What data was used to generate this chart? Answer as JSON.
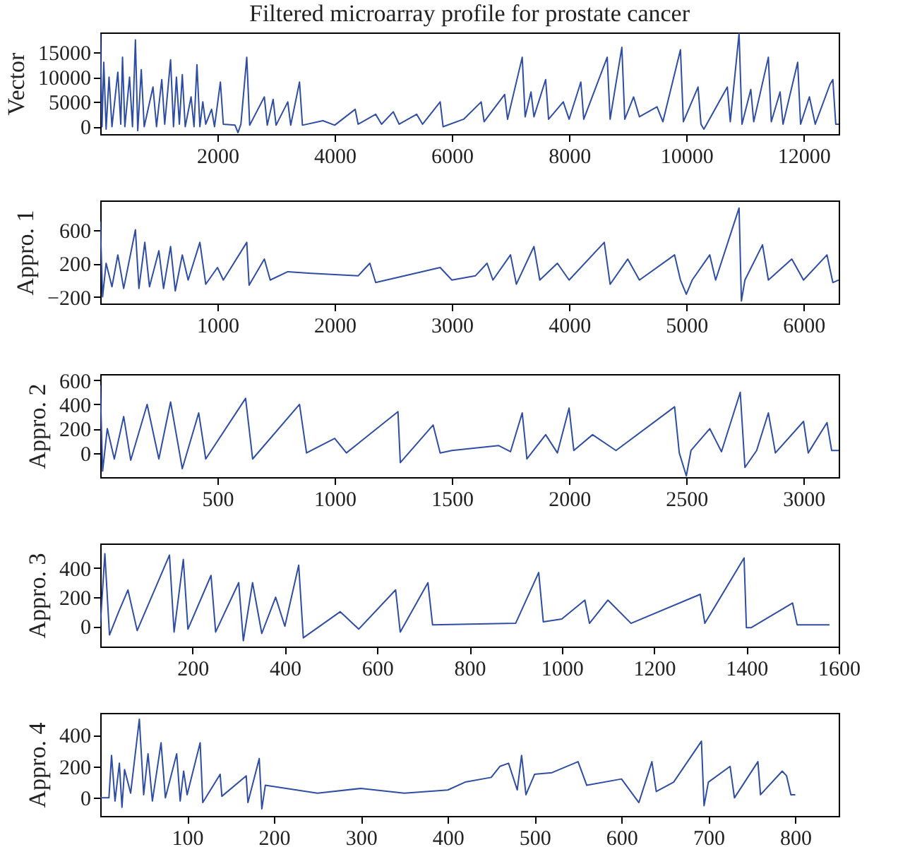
{
  "chart_data": [
    {
      "type": "line",
      "title": "Filtered microarray profile for prostate cancer",
      "ylabel": "Vector",
      "grid": false,
      "xlim": [
        0,
        12600
      ],
      "ylim": [
        -1500,
        19000
      ],
      "xticks": [
        2000,
        4000,
        6000,
        8000,
        10000,
        12000
      ],
      "yticks": [
        0,
        5000,
        10000,
        15000
      ],
      "x": [
        0,
        30,
        60,
        100,
        150,
        200,
        300,
        350,
        380,
        420,
        500,
        550,
        600,
        640,
        700,
        750,
        900,
        960,
        1050,
        1100,
        1200,
        1250,
        1300,
        1350,
        1400,
        1450,
        1550,
        1600,
        1650,
        1700,
        1750,
        1800,
        1900,
        1950,
        2050,
        2100,
        2300,
        2350,
        2400,
        2500,
        2550,
        2800,
        2850,
        2950,
        3000,
        3200,
        3250,
        3400,
        3450,
        3800,
        4000,
        4350,
        4400,
        4700,
        4800,
        5000,
        5100,
        5400,
        5500,
        5800,
        5850,
        6200,
        6500,
        6550,
        6900,
        6950,
        7200,
        7250,
        7350,
        7400,
        7600,
        7650,
        7900,
        8000,
        8200,
        8250,
        8650,
        8700,
        8900,
        8950,
        9100,
        9200,
        9500,
        9600,
        9900,
        9950,
        10200,
        10250,
        10300,
        10700,
        10750,
        10900,
        10950,
        11100,
        11150,
        11400,
        11450,
        11600,
        11650,
        11900,
        11950,
        12100,
        12200,
        12450,
        12500,
        12550,
        12600
      ],
      "series": [
        {
          "color": "#2f4ea3",
          "values": [
            18800,
            0,
            13000,
            -500,
            10000,
            0,
            11000,
            500,
            14000,
            0,
            10000,
            0,
            17500,
            -800,
            11500,
            0,
            8000,
            0,
            9500,
            500,
            13500,
            0,
            10000,
            500,
            10500,
            0,
            6000,
            0,
            12500,
            0,
            5000,
            500,
            3500,
            0,
            9000,
            500,
            300,
            -1200,
            500,
            14000,
            300,
            6000,
            300,
            5500,
            300,
            5000,
            300,
            9000,
            300,
            1200,
            300,
            3500,
            500,
            2500,
            500,
            3000,
            500,
            2500,
            500,
            5000,
            0,
            1500,
            5000,
            1000,
            6500,
            1500,
            14000,
            2000,
            7000,
            2000,
            9500,
            1500,
            5000,
            1500,
            9000,
            1500,
            14000,
            1500,
            16000,
            1500,
            6000,
            2000,
            4000,
            1000,
            15500,
            1000,
            8000,
            500,
            -500,
            8000,
            1000,
            18800,
            500,
            7500,
            1000,
            14000,
            1000,
            7000,
            500,
            13000,
            500,
            6000,
            500,
            8500,
            9500,
            500,
            500
          ]
        }
      ]
    },
    {
      "type": "line",
      "ylabel": "Appro. 1",
      "grid": false,
      "xlim": [
        0,
        6300
      ],
      "ylim": [
        -280,
        950
      ],
      "xticks": [
        1000,
        2000,
        3000,
        4000,
        5000,
        6000
      ],
      "yticks": [
        -200,
        200,
        600
      ],
      "x": [
        0,
        20,
        50,
        100,
        150,
        200,
        300,
        330,
        380,
        420,
        500,
        540,
        600,
        640,
        700,
        750,
        850,
        900,
        1000,
        1050,
        1250,
        1270,
        1400,
        1450,
        1600,
        1800,
        2200,
        2300,
        2350,
        2900,
        3000,
        3200,
        3300,
        3350,
        3500,
        3550,
        3700,
        3750,
        3900,
        4000,
        4300,
        4350,
        4500,
        4600,
        4900,
        4950,
        5000,
        5050,
        5200,
        5250,
        5450,
        5470,
        5500,
        5650,
        5700,
        5900,
        6000,
        6200,
        6250,
        6300
      ],
      "series": [
        {
          "color": "#2f4ea3",
          "values": [
            700,
            -200,
            200,
            -80,
            300,
            -100,
            600,
            -100,
            450,
            -80,
            350,
            -100,
            400,
            -130,
            300,
            0,
            450,
            -50,
            150,
            0,
            450,
            -60,
            250,
            0,
            100,
            80,
            50,
            200,
            -30,
            150,
            0,
            50,
            200,
            0,
            300,
            -50,
            400,
            0,
            200,
            0,
            450,
            -50,
            250,
            0,
            300,
            0,
            -170,
            0,
            300,
            0,
            860,
            -250,
            0,
            420,
            0,
            250,
            0,
            300,
            -30,
            0
          ]
        }
      ]
    },
    {
      "type": "line",
      "ylabel": "Appro. 2",
      "grid": false,
      "xlim": [
        0,
        3150
      ],
      "ylim": [
        -200,
        650
      ],
      "xticks": [
        500,
        1000,
        1500,
        2000,
        2500,
        3000
      ],
      "yticks": [
        0,
        200,
        400,
        600
      ],
      "x": [
        0,
        10,
        30,
        60,
        100,
        130,
        200,
        250,
        300,
        350,
        420,
        450,
        620,
        650,
        850,
        880,
        1000,
        1050,
        1270,
        1280,
        1420,
        1450,
        1500,
        1700,
        1750,
        1800,
        1820,
        1900,
        1950,
        2000,
        2020,
        2100,
        2200,
        2450,
        2470,
        2500,
        2520,
        2600,
        2650,
        2730,
        2750,
        2800,
        2850,
        2880,
        3000,
        3020,
        3100,
        3120,
        3150
      ],
      "series": [
        {
          "color": "#2f4ea3",
          "values": [
            560,
            -150,
            200,
            -50,
            300,
            -60,
            400,
            -50,
            420,
            -130,
            330,
            -50,
            450,
            -50,
            400,
            0,
            120,
            0,
            340,
            -80,
            230,
            0,
            20,
            60,
            10,
            330,
            -50,
            150,
            0,
            370,
            20,
            150,
            20,
            380,
            0,
            -190,
            20,
            200,
            10,
            500,
            -120,
            20,
            330,
            0,
            260,
            0,
            250,
            20,
            20
          ]
        }
      ]
    },
    {
      "type": "line",
      "ylabel": "Appro. 3",
      "grid": false,
      "xlim": [
        0,
        1600
      ],
      "ylim": [
        -140,
        570
      ],
      "xticks": [
        200,
        400,
        600,
        800,
        1000,
        1200,
        1400,
        1600
      ],
      "yticks": [
        0,
        200,
        400
      ],
      "x": [
        0,
        10,
        20,
        40,
        60,
        80,
        150,
        160,
        180,
        190,
        240,
        250,
        300,
        310,
        330,
        350,
        380,
        400,
        430,
        440,
        520,
        560,
        640,
        650,
        710,
        720,
        900,
        950,
        960,
        1000,
        1050,
        1060,
        1100,
        1150,
        1300,
        1310,
        1395,
        1400,
        1410,
        1500,
        1510,
        1580
      ],
      "series": [
        {
          "color": "#2f4ea3",
          "values": [
            0,
            500,
            -60,
            100,
            250,
            -30,
            490,
            -40,
            460,
            -20,
            350,
            -40,
            300,
            -100,
            300,
            -50,
            200,
            0,
            420,
            -80,
            100,
            -20,
            250,
            -40,
            300,
            10,
            20,
            370,
            30,
            50,
            180,
            20,
            180,
            20,
            220,
            20,
            470,
            -10,
            -10,
            160,
            10,
            10
          ]
        }
      ]
    },
    {
      "type": "line",
      "ylabel": "Appro. 4",
      "grid": false,
      "xlim": [
        0,
        850
      ],
      "ylim": [
        -115,
        540
      ],
      "xticks": [
        100,
        200,
        300,
        400,
        500,
        600,
        700,
        800
      ],
      "yticks": [
        0,
        200,
        400
      ],
      "x": [
        0,
        10,
        13,
        17,
        22,
        25,
        28,
        35,
        45,
        50,
        55,
        60,
        70,
        75,
        88,
        92,
        96,
        100,
        115,
        118,
        138,
        140,
        168,
        170,
        183,
        186,
        190,
        250,
        300,
        350,
        400,
        420,
        450,
        460,
        470,
        480,
        485,
        490,
        500,
        520,
        550,
        560,
        600,
        620,
        635,
        640,
        660,
        692,
        695,
        700,
        725,
        730,
        757,
        760,
        785,
        790,
        795,
        800
      ],
      "series": [
        {
          "color": "#2f4ea3",
          "values": [
            0,
            0,
            270,
            -20,
            220,
            -60,
            180,
            30,
            500,
            20,
            280,
            -20,
            350,
            0,
            280,
            -20,
            170,
            20,
            350,
            -30,
            150,
            10,
            140,
            -30,
            250,
            -70,
            80,
            30,
            60,
            30,
            50,
            100,
            130,
            200,
            220,
            50,
            270,
            20,
            150,
            160,
            230,
            80,
            120,
            -30,
            230,
            40,
            100,
            360,
            -50,
            100,
            200,
            0,
            230,
            20,
            170,
            140,
            20,
            20
          ]
        }
      ]
    }
  ]
}
